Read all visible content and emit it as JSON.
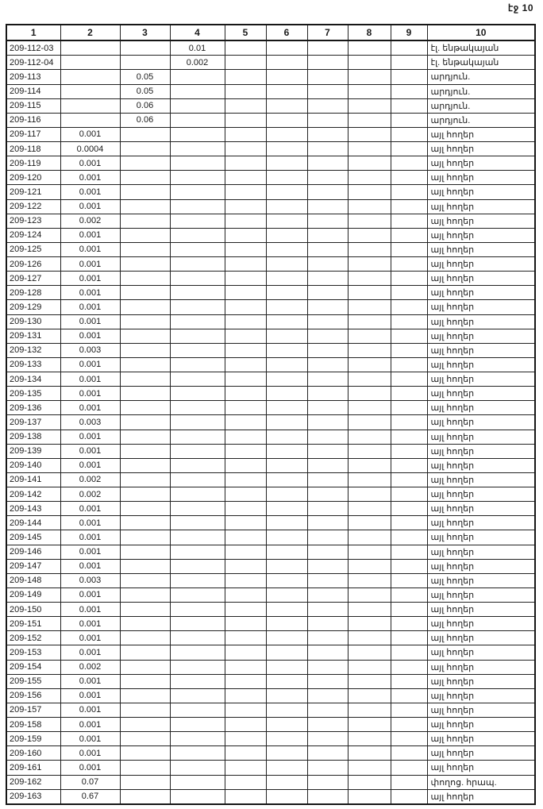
{
  "page": {
    "label": "էջ 10"
  },
  "table": {
    "headers": [
      "1",
      "2",
      "3",
      "4",
      "5",
      "6",
      "7",
      "8",
      "9",
      "10"
    ],
    "rows": [
      [
        "209-112-03",
        "",
        "",
        "0.01",
        "",
        "",
        "",
        "",
        "",
        "էլ. ենթակայան"
      ],
      [
        "209-112-04",
        "",
        "",
        "0.002",
        "",
        "",
        "",
        "",
        "",
        "էլ. ենթակայան"
      ],
      [
        "209-113",
        "",
        "0.05",
        "",
        "",
        "",
        "",
        "",
        "",
        "արդյուն."
      ],
      [
        "209-114",
        "",
        "0.05",
        "",
        "",
        "",
        "",
        "",
        "",
        "արդյուն."
      ],
      [
        "209-115",
        "",
        "0.06",
        "",
        "",
        "",
        "",
        "",
        "",
        "արդյուն."
      ],
      [
        "209-116",
        "",
        "0.06",
        "",
        "",
        "",
        "",
        "",
        "",
        "արդյուն."
      ],
      [
        "209-117",
        "0.001",
        "",
        "",
        "",
        "",
        "",
        "",
        "",
        "այլ հողեր"
      ],
      [
        "209-118",
        "0.0004",
        "",
        "",
        "",
        "",
        "",
        "",
        "",
        "այլ հողեր"
      ],
      [
        "209-119",
        "0.001",
        "",
        "",
        "",
        "",
        "",
        "",
        "",
        "այլ հողեր"
      ],
      [
        "209-120",
        "0.001",
        "",
        "",
        "",
        "",
        "",
        "",
        "",
        "այլ հողեր"
      ],
      [
        "209-121",
        "0.001",
        "",
        "",
        "",
        "",
        "",
        "",
        "",
        "այլ հողեր"
      ],
      [
        "209-122",
        "0.001",
        "",
        "",
        "",
        "",
        "",
        "",
        "",
        "այլ հողեր"
      ],
      [
        "209-123",
        "0.002",
        "",
        "",
        "",
        "",
        "",
        "",
        "",
        "այլ հողեր"
      ],
      [
        "209-124",
        "0.001",
        "",
        "",
        "",
        "",
        "",
        "",
        "",
        "այլ հողեր"
      ],
      [
        "209-125",
        "0.001",
        "",
        "",
        "",
        "",
        "",
        "",
        "",
        "այլ հողեր"
      ],
      [
        "209-126",
        "0.001",
        "",
        "",
        "",
        "",
        "",
        "",
        "",
        "այլ հողեր"
      ],
      [
        "209-127",
        "0.001",
        "",
        "",
        "",
        "",
        "",
        "",
        "",
        "այլ հողեր"
      ],
      [
        "209-128",
        "0.001",
        "",
        "",
        "",
        "",
        "",
        "",
        "",
        "այլ հողեր"
      ],
      [
        "209-129",
        "0.001",
        "",
        "",
        "",
        "",
        "",
        "",
        "",
        "այլ հողեր"
      ],
      [
        "209-130",
        "0.001",
        "",
        "",
        "",
        "",
        "",
        "",
        "",
        "այլ հողեր"
      ],
      [
        "209-131",
        "0.001",
        "",
        "",
        "",
        "",
        "",
        "",
        "",
        "այլ հողեր"
      ],
      [
        "209-132",
        "0.003",
        "",
        "",
        "",
        "",
        "",
        "",
        "",
        "այլ հողեր"
      ],
      [
        "209-133",
        "0.001",
        "",
        "",
        "",
        "",
        "",
        "",
        "",
        "այլ հողեր"
      ],
      [
        "209-134",
        "0.001",
        "",
        "",
        "",
        "",
        "",
        "",
        "",
        "այլ հողեր"
      ],
      [
        "209-135",
        "0.001",
        "",
        "",
        "",
        "",
        "",
        "",
        "",
        "այլ հողեր"
      ],
      [
        "209-136",
        "0.001",
        "",
        "",
        "",
        "",
        "",
        "",
        "",
        "այլ հողեր"
      ],
      [
        "209-137",
        "0.003",
        "",
        "",
        "",
        "",
        "",
        "",
        "",
        "այլ հողեր"
      ],
      [
        "209-138",
        "0.001",
        "",
        "",
        "",
        "",
        "",
        "",
        "",
        "այլ հողեր"
      ],
      [
        "209-139",
        "0.001",
        "",
        "",
        "",
        "",
        "",
        "",
        "",
        "այլ հողեր"
      ],
      [
        "209-140",
        "0.001",
        "",
        "",
        "",
        "",
        "",
        "",
        "",
        "այլ հողեր"
      ],
      [
        "209-141",
        "0.002",
        "",
        "",
        "",
        "",
        "",
        "",
        "",
        "այլ հողեր"
      ],
      [
        "209-142",
        "0.002",
        "",
        "",
        "",
        "",
        "",
        "",
        "",
        "այլ հողեր"
      ],
      [
        "209-143",
        "0.001",
        "",
        "",
        "",
        "",
        "",
        "",
        "",
        "այլ հողեր"
      ],
      [
        "209-144",
        "0.001",
        "",
        "",
        "",
        "",
        "",
        "",
        "",
        "այլ հողեր"
      ],
      [
        "209-145",
        "0.001",
        "",
        "",
        "",
        "",
        "",
        "",
        "",
        "այլ հողեր"
      ],
      [
        "209-146",
        "0.001",
        "",
        "",
        "",
        "",
        "",
        "",
        "",
        "այլ հողեր"
      ],
      [
        "209-147",
        "0.001",
        "",
        "",
        "",
        "",
        "",
        "",
        "",
        "այլ հողեր"
      ],
      [
        "209-148",
        "0.003",
        "",
        "",
        "",
        "",
        "",
        "",
        "",
        "այլ հողեր"
      ],
      [
        "209-149",
        "0.001",
        "",
        "",
        "",
        "",
        "",
        "",
        "",
        "այլ հողեր"
      ],
      [
        "209-150",
        "0.001",
        "",
        "",
        "",
        "",
        "",
        "",
        "",
        "այլ հողեր"
      ],
      [
        "209-151",
        "0.001",
        "",
        "",
        "",
        "",
        "",
        "",
        "",
        "այլ հողեր"
      ],
      [
        "209-152",
        "0.001",
        "",
        "",
        "",
        "",
        "",
        "",
        "",
        "այլ հողեր"
      ],
      [
        "209-153",
        "0.001",
        "",
        "",
        "",
        "",
        "",
        "",
        "",
        "այլ հողեր"
      ],
      [
        "209-154",
        "0.002",
        "",
        "",
        "",
        "",
        "",
        "",
        "",
        "այլ հողեր"
      ],
      [
        "209-155",
        "0.001",
        "",
        "",
        "",
        "",
        "",
        "",
        "",
        "այլ հողեր"
      ],
      [
        "209-156",
        "0.001",
        "",
        "",
        "",
        "",
        "",
        "",
        "",
        "այլ հողեր"
      ],
      [
        "209-157",
        "0.001",
        "",
        "",
        "",
        "",
        "",
        "",
        "",
        "այլ հողեր"
      ],
      [
        "209-158",
        "0.001",
        "",
        "",
        "",
        "",
        "",
        "",
        "",
        "այլ հողեր"
      ],
      [
        "209-159",
        "0.001",
        "",
        "",
        "",
        "",
        "",
        "",
        "",
        "այլ հողեր"
      ],
      [
        "209-160",
        "0.001",
        "",
        "",
        "",
        "",
        "",
        "",
        "",
        "այլ հողեր"
      ],
      [
        "209-161",
        "0.001",
        "",
        "",
        "",
        "",
        "",
        "",
        "",
        "այլ հողեր"
      ],
      [
        "209-162",
        "0.07",
        "",
        "",
        "",
        "",
        "",
        "",
        "",
        "փողոց. հրապ."
      ],
      [
        "209-163",
        "0.67",
        "",
        "",
        "",
        "",
        "",
        "",
        "",
        "այլ հողեր"
      ]
    ]
  }
}
